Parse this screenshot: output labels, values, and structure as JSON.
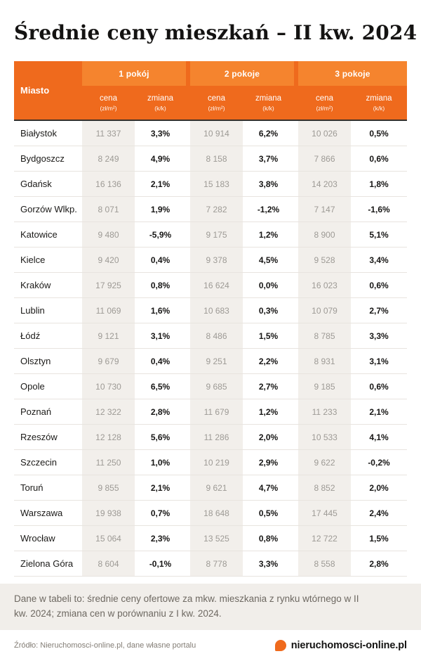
{
  "title": "Średnie ceny mieszkań – II kw. 2024",
  "header": {
    "city_label": "Miasto",
    "groups": [
      "1 pokój",
      "2 pokoje",
      "3 pokoje"
    ],
    "price_label": "cena",
    "price_unit": "(zł/m²)",
    "change_label": "zmiana",
    "change_unit": "(k/k)"
  },
  "chart_data": {
    "type": "table",
    "title": "Średnie ceny mieszkań – II kw. 2024",
    "columns": [
      "Miasto",
      "1 pokój cena (zł/m²)",
      "1 pokój zmiana (k/k)",
      "2 pokoje cena (zł/m²)",
      "2 pokoje zmiana (k/k)",
      "3 pokoje cena (zł/m²)",
      "3 pokoje zmiana (k/k)"
    ],
    "rows": [
      {
        "city": "Białystok",
        "p1": "11 337",
        "c1": "3,3%",
        "p2": "10 914",
        "c2": "6,2%",
        "p3": "10 026",
        "c3": "0,5%"
      },
      {
        "city": "Bydgoszcz",
        "p1": "8 249",
        "c1": "4,9%",
        "p2": "8 158",
        "c2": "3,7%",
        "p3": "7 866",
        "c3": "0,6%"
      },
      {
        "city": "Gdańsk",
        "p1": "16 136",
        "c1": "2,1%",
        "p2": "15 183",
        "c2": "3,8%",
        "p3": "14 203",
        "c3": "1,8%"
      },
      {
        "city": "Gorzów Wlkp.",
        "p1": "8 071",
        "c1": "1,9%",
        "p2": "7 282",
        "c2": "-1,2%",
        "p3": "7 147",
        "c3": "-1,6%"
      },
      {
        "city": "Katowice",
        "p1": "9 480",
        "c1": "-5,9%",
        "p2": "9 175",
        "c2": "1,2%",
        "p3": "8 900",
        "c3": "5,1%"
      },
      {
        "city": "Kielce",
        "p1": "9 420",
        "c1": "0,4%",
        "p2": "9 378",
        "c2": "4,5%",
        "p3": "9 528",
        "c3": "3,4%"
      },
      {
        "city": "Kraków",
        "p1": "17 925",
        "c1": "0,8%",
        "p2": "16 624",
        "c2": "0,0%",
        "p3": "16 023",
        "c3": "0,6%"
      },
      {
        "city": "Lublin",
        "p1": "11 069",
        "c1": "1,6%",
        "p2": "10 683",
        "c2": "0,3%",
        "p3": "10 079",
        "c3": "2,7%"
      },
      {
        "city": "Łódź",
        "p1": "9 121",
        "c1": "3,1%",
        "p2": "8 486",
        "c2": "1,5%",
        "p3": "8 785",
        "c3": "3,3%"
      },
      {
        "city": "Olsztyn",
        "p1": "9 679",
        "c1": "0,4%",
        "p2": "9 251",
        "c2": "2,2%",
        "p3": "8 931",
        "c3": "3,1%"
      },
      {
        "city": "Opole",
        "p1": "10 730",
        "c1": "6,5%",
        "p2": "9 685",
        "c2": "2,7%",
        "p3": "9 185",
        "c3": "0,6%"
      },
      {
        "city": "Poznań",
        "p1": "12 322",
        "c1": "2,8%",
        "p2": "11 679",
        "c2": "1,2%",
        "p3": "11 233",
        "c3": "2,1%"
      },
      {
        "city": "Rzeszów",
        "p1": "12 128",
        "c1": "5,6%",
        "p2": "11 286",
        "c2": "2,0%",
        "p3": "10 533",
        "c3": "4,1%"
      },
      {
        "city": "Szczecin",
        "p1": "11 250",
        "c1": "1,0%",
        "p2": "10 219",
        "c2": "2,9%",
        "p3": "9 622",
        "c3": "-0,2%"
      },
      {
        "city": "Toruń",
        "p1": "9 855",
        "c1": "2,1%",
        "p2": "9 621",
        "c2": "4,7%",
        "p3": "8 852",
        "c3": "2,0%"
      },
      {
        "city": "Warszawa",
        "p1": "19 938",
        "c1": "0,7%",
        "p2": "18 648",
        "c2": "0,5%",
        "p3": "17 445",
        "c3": "2,4%"
      },
      {
        "city": "Wrocław",
        "p1": "15 064",
        "c1": "2,3%",
        "p2": "13 525",
        "c2": "0,8%",
        "p3": "12 722",
        "c3": "1,5%"
      },
      {
        "city": "Zielona Góra",
        "p1": "8 604",
        "c1": "-0,1%",
        "p2": "8 778",
        "c2": "3,3%",
        "p3": "8 558",
        "c3": "2,8%"
      }
    ]
  },
  "footnote": {
    "text": "Dane w tabeli to: średnie ceny ofertowe za mkw. mieszkania z rynku wtórnego w II kw. 2024; zmiana cen w porównaniu z I kw. 2024."
  },
  "footer": {
    "source": "Źródło: Nieruchomosci-online.pl, dane własne portalu",
    "brand": "nieruchomosci-online.pl"
  },
  "colors": {
    "header_orange": "#ef6a1d",
    "group_orange": "#f5842e",
    "stripe_gray": "#f2efeb",
    "footnote_bg": "#f1eeea"
  }
}
